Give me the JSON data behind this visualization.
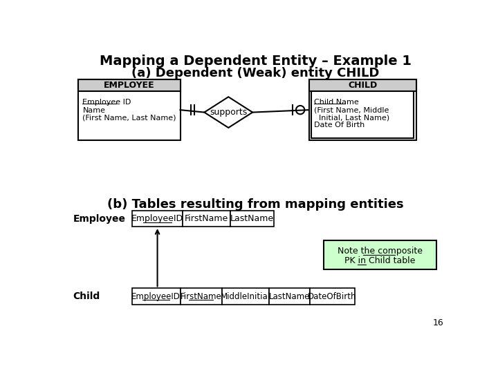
{
  "title": "Mapping a Dependent Entity – Example 1",
  "subtitle_a": "(a) Dependent (Weak) entity CHILD",
  "subtitle_b": "(b) Tables resulting from mapping entities",
  "bg_color": "#ffffff",
  "title_fontsize": 14,
  "subtitle_fontsize": 13,
  "page_number": "16",
  "header_color": "#cccccc",
  "note_color": "#ccffcc"
}
